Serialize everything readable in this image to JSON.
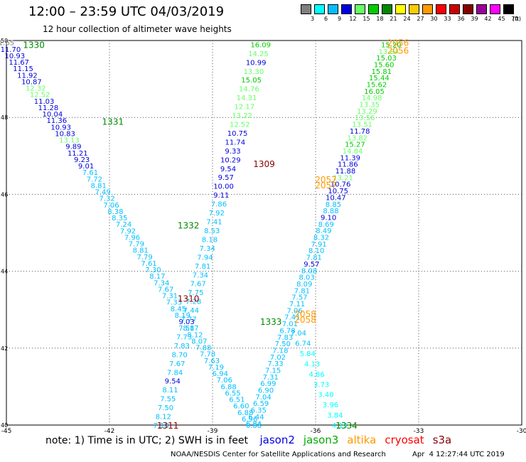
{
  "header": {
    "title": "12:00 – 23:59 UTC 04/03/2019",
    "subtitle": "12 hour collection of altimeter wave heights"
  },
  "legend": {
    "unit": "(ft)",
    "steps": [
      {
        "label": "3",
        "color": "#7f7f7f"
      },
      {
        "label": "6",
        "color": "#00ffff"
      },
      {
        "label": "9",
        "color": "#00bfff"
      },
      {
        "label": "12",
        "color": "#0000dd"
      },
      {
        "label": "15",
        "color": "#66ff66"
      },
      {
        "label": "18",
        "color": "#00cc00"
      },
      {
        "label": "21",
        "color": "#008800"
      },
      {
        "label": "24",
        "color": "#ffff00"
      },
      {
        "label": "27",
        "color": "#ffcc00"
      },
      {
        "label": "30",
        "color": "#ff9900"
      },
      {
        "label": "33",
        "color": "#ff0000"
      },
      {
        "label": "36",
        "color": "#cc0000"
      },
      {
        "label": "39",
        "color": "#880000"
      },
      {
        "label": "42",
        "color": "#990099"
      },
      {
        "label": "45",
        "color": "#ff00ff"
      },
      {
        "label": "70",
        "color": "#000000"
      }
    ]
  },
  "map": {
    "lon_range": [
      -45,
      -30
    ],
    "lat_range": [
      40,
      50
    ],
    "lon_ticks": [
      "-45",
      "-42",
      "-39",
      "-36",
      "-33",
      "-30"
    ],
    "lat_ticks": [
      "50",
      "48",
      "46",
      "44",
      "42",
      "40"
    ]
  },
  "tracks": [
    {
      "id": "t1330",
      "start": [
        -45.0,
        49.95
      ],
      "end": [
        -37.8,
        40.0
      ],
      "values": [
        "1.65",
        "11.70",
        "10.93",
        "11.67",
        "11.15",
        "11.92",
        "10.87",
        "12.32",
        "12.52",
        "11.03",
        "11.28",
        "10.04",
        "11.36",
        "10.93",
        "10.83",
        "13.13",
        "9.89",
        "11.21",
        "9.23",
        "9.01",
        "7.61",
        "7.72",
        "8.81",
        "7.49",
        "7.32",
        "7.06",
        "8.38",
        "8.35",
        "7.24",
        "7.92",
        "7.96",
        "7.79",
        "8.81",
        "7.79",
        "7.61",
        "7.30",
        "8.17",
        "7.34",
        "7.67",
        "7.31",
        "7.33",
        "8.45",
        "8.19",
        "9.03",
        "8.17",
        "8.12",
        "8.07",
        "7.88",
        "7.78",
        "7.63",
        "7.19",
        "6.94",
        "7.06",
        "6.88",
        "6.55",
        "6.51",
        "6.60",
        "6.88",
        "6.96",
        "6.88"
      ]
    },
    {
      "id": "t1311",
      "start": [
        -37.6,
        49.9
      ],
      "end": [
        -40.5,
        40.0
      ],
      "values": [
        "16.09",
        "14.25",
        "10.99",
        "13.30",
        "15.05",
        "14.76",
        "14.31",
        "12.17",
        "13.22",
        "12.52",
        "10.75",
        "11.74",
        "9.33",
        "10.29",
        "9.54",
        "9.57",
        "10.00",
        "9.11",
        "7.86",
        "7.92",
        "7.41",
        "8.53",
        "8.18",
        "7.34",
        "7.94",
        "7.81",
        "7.34",
        "7.67",
        "7.75",
        "7.28",
        "7.44",
        "7.77",
        "7.58",
        "7.73",
        "7.83",
        "8.70",
        "7.67",
        "7.84",
        "9.54",
        "8.11",
        "7.55",
        "7.50",
        "8.12",
        "7.18"
      ]
    },
    {
      "id": "t2056",
      "start": [
        -33.8,
        49.9
      ],
      "end": [
        -37.8,
        40.05
      ],
      "values": [
        "15.20",
        "13.84",
        "15.03",
        "15.60",
        "15.81",
        "15.44",
        "15.62",
        "16.05",
        "14.98",
        "13.35",
        "13.29",
        "13.56",
        "13.51",
        "11.78",
        "13.82",
        "15.27",
        "14.84",
        "11.39",
        "11.86",
        "11.88",
        "13.21",
        "10.76",
        "10.75",
        "10.47",
        "8.85",
        "8.88",
        "9.10",
        "8.69",
        "8.49",
        "8.32",
        "7.91",
        "8.10",
        "7.81",
        "9.57",
        "8.08",
        "8.03",
        "8.09",
        "7.81",
        "7.57",
        "7.11",
        "7.06",
        "7.41",
        "7.01",
        "6.78",
        "7.83",
        "7.50",
        "7.18",
        "7.02",
        "7.33",
        "7.15",
        "7.31",
        "6.99",
        "6.90",
        "7.04",
        "6.59",
        "6.35",
        "6.44",
        "6.84"
      ]
    },
    {
      "id": "t1334",
      "start": [
        -36.5,
        42.4
      ],
      "end": [
        -35.3,
        40.0
      ],
      "values": [
        "7.04",
        "6.74",
        "5.84",
        "4.13",
        "4.86",
        "3.73",
        "3.40",
        "3.96",
        "3.84",
        "4.13"
      ]
    }
  ],
  "pass_labels": [
    {
      "text": "1330",
      "color": "#008800",
      "lon": -44.2,
      "lat": 49.9
    },
    {
      "text": "1331",
      "color": "#008800",
      "lon": -41.9,
      "lat": 47.9
    },
    {
      "text": "1332",
      "color": "#008800",
      "lon": -39.7,
      "lat": 45.2
    },
    {
      "text": "1309",
      "color": "#880000",
      "lon": -37.5,
      "lat": 46.8
    },
    {
      "text": "1310",
      "color": "#880000",
      "lon": -39.7,
      "lat": 43.3
    },
    {
      "text": "1311",
      "color": "#880000",
      "lon": -40.3,
      "lat": 40.0
    },
    {
      "text": "1333",
      "color": "#008800",
      "lon": -37.3,
      "lat": 42.7
    },
    {
      "text": "1334",
      "color": "#008800",
      "lon": -35.1,
      "lat": 40.0
    },
    {
      "text": "2056",
      "color": "#ff9900",
      "lon": -33.6,
      "lat": 49.95
    },
    {
      "text": "2056",
      "color": "#ff9900",
      "lon": -33.6,
      "lat": 49.75
    },
    {
      "text": "2057",
      "color": "#ff9900",
      "lon": -35.7,
      "lat": 46.4
    },
    {
      "text": "2057",
      "color": "#ff9900",
      "lon": -35.7,
      "lat": 46.25
    },
    {
      "text": "2058",
      "color": "#ff9900",
      "lon": -36.3,
      "lat": 42.9
    },
    {
      "text": "2058",
      "color": "#ff9900",
      "lon": -36.3,
      "lat": 42.75
    }
  ],
  "footer": {
    "note": "note:  1) Time is in UTC;  2) SWH is in feet",
    "satellites": [
      {
        "name": "jason2",
        "color": "#0000dd"
      },
      {
        "name": "jason3",
        "color": "#00aa00"
      },
      {
        "name": "altika",
        "color": "#ff9900"
      },
      {
        "name": "cryosat",
        "color": "#ff0000"
      },
      {
        "name": "s3a",
        "color": "#880000"
      }
    ],
    "credit": "NOAA/NESDIS Center for Satellite Applications and Research",
    "timestamp": "Apr  4 12:27:44 UTC 2019"
  }
}
